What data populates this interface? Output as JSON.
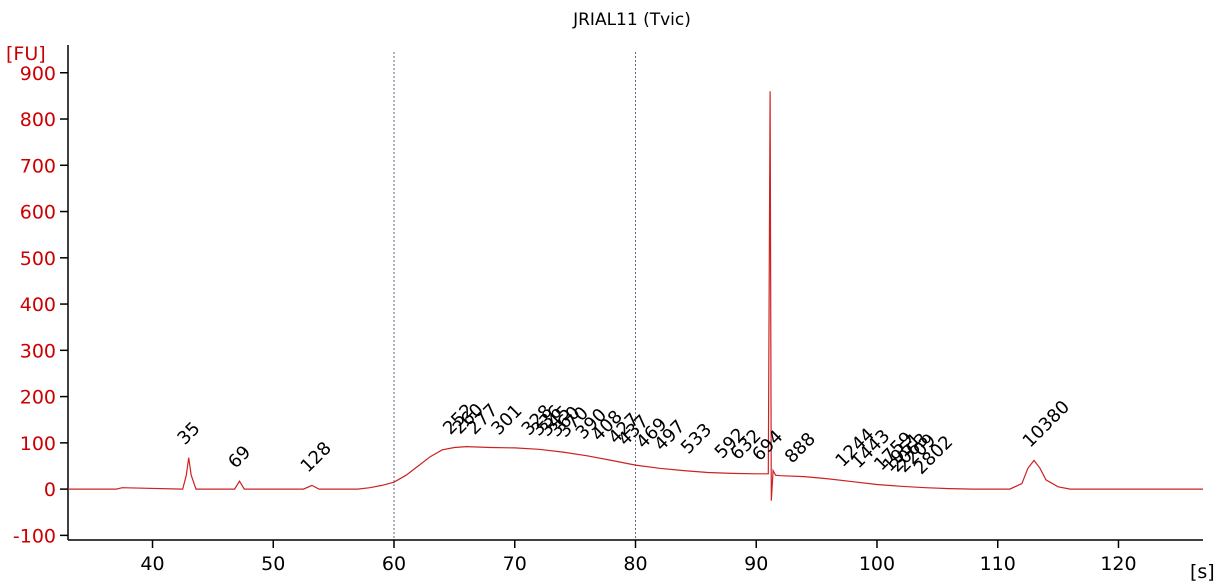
{
  "chart_data": {
    "type": "line",
    "title": "JRIAL11 (Tvic)",
    "ylabel": "[FU]",
    "xlabel": "[s]",
    "xlim": [
      33,
      127
    ],
    "ylim": [
      -110,
      960
    ],
    "x_ticks": [
      40,
      50,
      60,
      70,
      80,
      90,
      100,
      110,
      120
    ],
    "y_ticks": [
      -100,
      0,
      100,
      200,
      300,
      400,
      500,
      600,
      700,
      800,
      900
    ],
    "reference_lines_x": [
      60,
      80
    ],
    "series": [
      {
        "color": "#cc2222",
        "x": [
          33,
          37,
          37.5,
          42.5,
          42.8,
          43.0,
          43.2,
          43.6,
          46.8,
          47.2,
          47.6,
          52.5,
          53.2,
          53.8,
          57,
          58,
          59,
          60,
          61,
          62,
          63,
          64,
          65,
          66,
          68,
          70,
          72,
          74,
          76,
          78,
          80,
          82,
          84,
          86,
          88,
          90,
          91.0,
          91.15,
          91.25,
          91.4,
          91.6,
          92,
          94,
          96,
          98,
          100,
          102,
          104,
          106,
          108,
          111,
          112,
          112.5,
          113,
          113.5,
          114,
          115,
          116,
          127
        ],
        "y": [
          0,
          0,
          3,
          0,
          30,
          68,
          30,
          0,
          0,
          17,
          0,
          0,
          8,
          0,
          0,
          3,
          8,
          15,
          30,
          50,
          70,
          85,
          90,
          92,
          90,
          89,
          86,
          80,
          72,
          62,
          52,
          45,
          40,
          36,
          34,
          33,
          33,
          860,
          -25,
          40,
          30,
          29,
          27,
          22,
          16,
          10,
          6,
          3,
          1,
          0,
          0,
          12,
          45,
          62,
          45,
          20,
          5,
          0,
          0
        ]
      }
    ],
    "peak_labels": [
      {
        "text": "35",
        "x": 43.0,
        "y": 68,
        "color": "#1a8a1a"
      },
      {
        "text": "69",
        "x": 47.2,
        "y": 17
      },
      {
        "text": "128",
        "x": 53.2,
        "y": 8
      },
      {
        "text": "252",
        "x": 65.0,
        "y": 90
      },
      {
        "text": "260",
        "x": 65.8,
        "y": 91
      },
      {
        "text": "277",
        "x": 67.0,
        "y": 90
      },
      {
        "text": "301",
        "x": 69.0,
        "y": 89
      },
      {
        "text": "328",
        "x": 71.5,
        "y": 88
      },
      {
        "text": "336",
        "x": 72.3,
        "y": 87
      },
      {
        "text": "345",
        "x": 73.0,
        "y": 86
      },
      {
        "text": "360",
        "x": 73.8,
        "y": 85
      },
      {
        "text": "370",
        "x": 74.5,
        "y": 84
      },
      {
        "text": "390",
        "x": 76.0,
        "y": 80
      },
      {
        "text": "408",
        "x": 77.3,
        "y": 76
      },
      {
        "text": "427",
        "x": 78.7,
        "y": 70
      },
      {
        "text": "437",
        "x": 79.5,
        "y": 66
      },
      {
        "text": "469",
        "x": 81.0,
        "y": 60
      },
      {
        "text": "497",
        "x": 82.5,
        "y": 55
      },
      {
        "text": "533",
        "x": 84.7,
        "y": 48
      },
      {
        "text": "592",
        "x": 87.5,
        "y": 38
      },
      {
        "text": "632",
        "x": 88.8,
        "y": 35
      },
      {
        "text": "694",
        "x": 90.6,
        "y": 33
      },
      {
        "text": "888",
        "x": 93.3,
        "y": 28
      },
      {
        "text": "1244",
        "x": 97.5,
        "y": 20
      },
      {
        "text": "1443",
        "x": 98.8,
        "y": 17
      },
      {
        "text": "1759",
        "x": 100.7,
        "y": 12
      },
      {
        "text": "1951",
        "x": 101.4,
        "y": 10
      },
      {
        "text": "2063",
        "x": 102.0,
        "y": 9
      },
      {
        "text": "2209",
        "x": 102.6,
        "y": 8
      },
      {
        "text": "2802",
        "x": 104.0,
        "y": 4
      },
      {
        "text": "10380",
        "x": 113.0,
        "y": 62,
        "color": "#9b30d9"
      }
    ],
    "grid": false
  }
}
